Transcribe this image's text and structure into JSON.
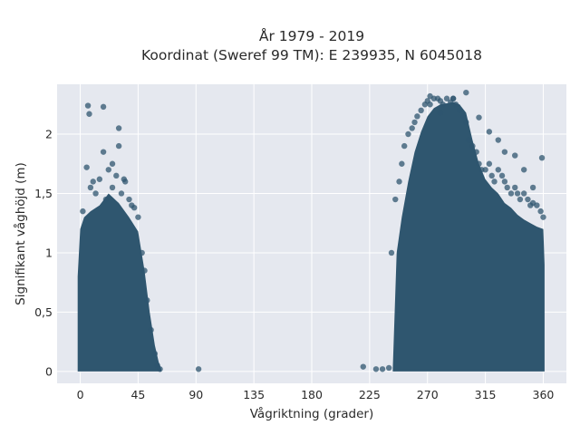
{
  "chart_data": {
    "type": "scatter",
    "title_line1": "År 1979 - 2019",
    "title_line2": "Koordinat (Sweref 99 TM): E 239935, N 6045018",
    "xlabel": "Vågriktning (grader)",
    "ylabel": "Signifikant våghöjd (m)",
    "xlim": [
      -18,
      378
    ],
    "ylim": [
      -0.1,
      2.42
    ],
    "x_ticks": [
      0,
      45,
      90,
      135,
      180,
      225,
      270,
      315,
      360
    ],
    "x_tick_labels": [
      "0",
      "45",
      "90",
      "135",
      "180",
      "225",
      "270",
      "315",
      "360"
    ],
    "y_ticks": [
      0,
      0.5,
      1,
      1.5,
      2
    ],
    "y_tick_labels": [
      "0",
      "0,5",
      "1",
      "1,5",
      "2"
    ],
    "grid": true,
    "marker_color": "#2f566f",
    "plot_bg": "#e5e8ef",
    "series": [
      {
        "x": [
          2,
          5,
          8,
          10,
          12,
          15,
          18,
          20,
          22,
          25,
          28,
          30,
          32,
          35,
          38,
          40,
          42,
          45,
          48,
          50,
          52,
          55,
          58,
          60,
          62,
          92,
          220,
          230,
          235,
          240,
          242,
          245,
          248,
          250,
          252,
          255,
          258,
          260,
          262,
          265,
          268,
          270,
          272,
          275,
          278,
          280,
          282,
          285,
          288,
          290,
          292,
          295,
          298,
          300,
          302,
          305,
          308,
          310,
          312,
          315,
          318,
          320,
          322,
          325,
          328,
          330,
          332,
          335,
          338,
          340,
          342,
          345,
          348,
          350,
          352,
          355,
          358,
          360,
          6,
          7,
          18,
          25,
          30,
          34,
          272,
          280,
          290,
          300,
          310,
          318,
          325,
          330,
          338,
          345,
          352,
          359
        ],
        "y": [
          1.35,
          1.72,
          1.55,
          1.6,
          1.5,
          1.62,
          1.85,
          1.45,
          1.7,
          1.55,
          1.65,
          2.05,
          1.5,
          1.6,
          1.45,
          1.4,
          1.38,
          1.3,
          1.0,
          0.85,
          0.6,
          0.35,
          0.15,
          0.05,
          0.02,
          0.02,
          0.04,
          0.02,
          0.02,
          0.03,
          1.0,
          1.45,
          1.6,
          1.75,
          1.9,
          2.0,
          2.05,
          2.1,
          2.15,
          2.2,
          2.25,
          2.28,
          2.25,
          2.3,
          2.3,
          2.28,
          2.25,
          2.3,
          2.27,
          2.3,
          2.25,
          2.2,
          2.15,
          2.1,
          1.95,
          1.9,
          1.85,
          1.75,
          1.7,
          1.7,
          1.75,
          1.65,
          1.6,
          1.7,
          1.65,
          1.6,
          1.55,
          1.5,
          1.55,
          1.5,
          1.45,
          1.5,
          1.45,
          1.4,
          1.42,
          1.4,
          1.35,
          1.3,
          2.24,
          2.17,
          2.23,
          1.75,
          1.9,
          1.62,
          2.32,
          2.18,
          2.3,
          2.35,
          2.14,
          2.02,
          1.95,
          1.85,
          1.82,
          1.7,
          1.55,
          1.8
        ]
      }
    ],
    "dense_regions": [
      {
        "x_min": -2,
        "x_max": 63,
        "upper": [
          [
            -2,
            0.8
          ],
          [
            0,
            1.2
          ],
          [
            3,
            1.3
          ],
          [
            8,
            1.35
          ],
          [
            15,
            1.4
          ],
          [
            22,
            1.5
          ],
          [
            30,
            1.42
          ],
          [
            38,
            1.3
          ],
          [
            45,
            1.18
          ],
          [
            50,
            0.85
          ],
          [
            54,
            0.5
          ],
          [
            58,
            0.22
          ],
          [
            61,
            0.08
          ],
          [
            63,
            0.02
          ]
        ]
      },
      {
        "x_min": 243,
        "x_max": 361,
        "upper": [
          [
            243,
            0.02
          ],
          [
            246,
            1.0
          ],
          [
            250,
            1.3
          ],
          [
            255,
            1.6
          ],
          [
            260,
            1.85
          ],
          [
            265,
            2.02
          ],
          [
            270,
            2.15
          ],
          [
            275,
            2.22
          ],
          [
            280,
            2.25
          ],
          [
            285,
            2.26
          ],
          [
            290,
            2.27
          ],
          [
            295,
            2.25
          ],
          [
            300,
            2.18
          ],
          [
            305,
            1.95
          ],
          [
            310,
            1.75
          ],
          [
            315,
            1.62
          ],
          [
            320,
            1.55
          ],
          [
            325,
            1.5
          ],
          [
            330,
            1.42
          ],
          [
            335,
            1.38
          ],
          [
            340,
            1.32
          ],
          [
            345,
            1.28
          ],
          [
            350,
            1.25
          ],
          [
            355,
            1.22
          ],
          [
            360,
            1.2
          ],
          [
            361,
            0.9
          ]
        ]
      }
    ]
  }
}
